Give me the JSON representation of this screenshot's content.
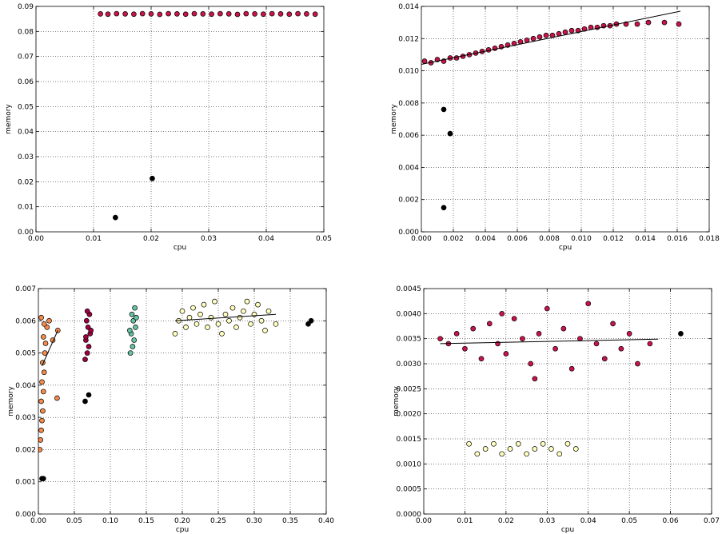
{
  "chart_data": [
    {
      "type": "scatter",
      "xlabel": "cpu",
      "ylabel": "memory",
      "xlim": [
        0,
        0.05
      ],
      "ylim": [
        0,
        0.09
      ],
      "xticks": [
        "0.00",
        "0.01",
        "0.02",
        "0.03",
        "0.04",
        "0.05"
      ],
      "yticks": [
        "0.00",
        "0.01",
        "0.02",
        "0.03",
        "0.04",
        "0.05",
        "0.06",
        "0.07",
        "0.08",
        "0.09"
      ],
      "grid": true,
      "series": [
        {
          "color": "#c8144a",
          "points": [
            [
              0.0112,
              0.087
            ],
            [
              0.0125,
              0.0869
            ],
            [
              0.014,
              0.0871
            ],
            [
              0.0155,
              0.087
            ],
            [
              0.017,
              0.0869
            ],
            [
              0.0185,
              0.0871
            ],
            [
              0.02,
              0.087
            ],
            [
              0.0215,
              0.0868
            ],
            [
              0.023,
              0.0871
            ],
            [
              0.0245,
              0.087
            ],
            [
              0.026,
              0.0869
            ],
            [
              0.0275,
              0.0871
            ],
            [
              0.029,
              0.087
            ],
            [
              0.0305,
              0.0869
            ],
            [
              0.032,
              0.0871
            ],
            [
              0.0335,
              0.087
            ],
            [
              0.035,
              0.0868
            ],
            [
              0.0365,
              0.0871
            ],
            [
              0.038,
              0.087
            ],
            [
              0.0395,
              0.0869
            ],
            [
              0.041,
              0.0871
            ],
            [
              0.0425,
              0.087
            ],
            [
              0.044,
              0.0869
            ],
            [
              0.0455,
              0.0871
            ],
            [
              0.047,
              0.087
            ],
            [
              0.0485,
              0.0869
            ]
          ]
        },
        {
          "color": "#000000",
          "points": [
            [
              0.0138,
              0.0057
            ],
            [
              0.0202,
              0.0213
            ]
          ]
        }
      ],
      "fit_lines": []
    },
    {
      "type": "scatter",
      "xlabel": "cpu",
      "ylabel": "memory",
      "xlim": [
        0,
        0.018
      ],
      "ylim": [
        0,
        0.014
      ],
      "xticks": [
        "0.000",
        "0.002",
        "0.004",
        "0.006",
        "0.008",
        "0.010",
        "0.012",
        "0.014",
        "0.016",
        "0.018"
      ],
      "yticks": [
        "0.000",
        "0.002",
        "0.004",
        "0.006",
        "0.008",
        "0.010",
        "0.012",
        "0.014"
      ],
      "grid": true,
      "series": [
        {
          "color": "#c8144a",
          "points": [
            [
              0.0002,
              0.0106
            ],
            [
              0.0006,
              0.0105
            ],
            [
              0.001,
              0.0107
            ],
            [
              0.0014,
              0.0106
            ],
            [
              0.0018,
              0.0108
            ],
            [
              0.0022,
              0.0108
            ],
            [
              0.0026,
              0.0109
            ],
            [
              0.003,
              0.011
            ],
            [
              0.0034,
              0.0111
            ],
            [
              0.0038,
              0.0112
            ],
            [
              0.0042,
              0.0113
            ],
            [
              0.0046,
              0.0114
            ],
            [
              0.005,
              0.0115
            ],
            [
              0.0054,
              0.0116
            ],
            [
              0.0058,
              0.0117
            ],
            [
              0.0062,
              0.0118
            ],
            [
              0.0066,
              0.0119
            ],
            [
              0.007,
              0.012
            ],
            [
              0.0074,
              0.0121
            ],
            [
              0.0078,
              0.0122
            ],
            [
              0.0082,
              0.0122
            ],
            [
              0.0086,
              0.0123
            ],
            [
              0.009,
              0.0124
            ],
            [
              0.0094,
              0.0125
            ],
            [
              0.0098,
              0.0125
            ],
            [
              0.0102,
              0.0126
            ],
            [
              0.0106,
              0.0127
            ],
            [
              0.011,
              0.0127
            ],
            [
              0.0114,
              0.0128
            ],
            [
              0.0118,
              0.0128
            ],
            [
              0.0122,
              0.0129
            ],
            [
              0.0128,
              0.0129
            ],
            [
              0.0135,
              0.0129
            ],
            [
              0.0142,
              0.013
            ],
            [
              0.0152,
              0.013
            ],
            [
              0.0161,
              0.0129
            ]
          ]
        },
        {
          "color": "#000000",
          "points": [
            [
              0.0014,
              0.0076
            ],
            [
              0.0018,
              0.0061
            ],
            [
              0.0014,
              0.0015
            ]
          ]
        }
      ],
      "fit_lines": [
        {
          "color": "#000000",
          "points": [
            [
              0.0,
              0.0104
            ],
            [
              0.0162,
              0.0137
            ]
          ]
        }
      ]
    },
    {
      "type": "scatter",
      "xlabel": "cpu",
      "ylabel": "memory",
      "xlim": [
        0,
        0.4
      ],
      "ylim": [
        0,
        0.007
      ],
      "xticks": [
        "0.00",
        "0.05",
        "0.10",
        "0.15",
        "0.20",
        "0.25",
        "0.30",
        "0.35",
        "0.40"
      ],
      "yticks": [
        "0.000",
        "0.001",
        "0.002",
        "0.003",
        "0.004",
        "0.005",
        "0.006",
        "0.007"
      ],
      "grid": true,
      "series": [
        {
          "color": "#f58b4c",
          "points": [
            [
              0.002,
              0.002
            ],
            [
              0.003,
              0.0023
            ],
            [
              0.004,
              0.0026
            ],
            [
              0.005,
              0.0029
            ],
            [
              0.006,
              0.0032
            ],
            [
              0.004,
              0.0035
            ],
            [
              0.007,
              0.0038
            ],
            [
              0.005,
              0.0041
            ],
            [
              0.008,
              0.0044
            ],
            [
              0.006,
              0.0047
            ],
            [
              0.009,
              0.005
            ],
            [
              0.01,
              0.0053
            ],
            [
              0.007,
              0.0055
            ],
            [
              0.012,
              0.0058
            ],
            [
              0.015,
              0.006
            ],
            [
              0.004,
              0.0061
            ],
            [
              0.008,
              0.0059
            ],
            [
              0.02,
              0.0054
            ],
            [
              0.026,
              0.0036
            ],
            [
              0.027,
              0.0057
            ]
          ]
        },
        {
          "color": "#9e0142",
          "points": [
            [
              0.065,
              0.0048
            ],
            [
              0.068,
              0.005
            ],
            [
              0.07,
              0.0052
            ],
            [
              0.066,
              0.0054
            ],
            [
              0.072,
              0.0056
            ],
            [
              0.069,
              0.0058
            ],
            [
              0.067,
              0.006
            ],
            [
              0.071,
              0.0062
            ],
            [
              0.068,
              0.0063
            ],
            [
              0.073,
              0.0057
            ],
            [
              0.066,
              0.0055
            ]
          ]
        },
        {
          "color": "#66c2a5",
          "points": [
            [
              0.128,
              0.005
            ],
            [
              0.131,
              0.0052
            ],
            [
              0.133,
              0.0054
            ],
            [
              0.129,
              0.0056
            ],
            [
              0.135,
              0.0058
            ],
            [
              0.132,
              0.006
            ],
            [
              0.13,
              0.0062
            ],
            [
              0.134,
              0.0064
            ],
            [
              0.136,
              0.0061
            ],
            [
              0.127,
              0.0057
            ]
          ]
        },
        {
          "color": "#ffffbf",
          "points": [
            [
              0.19,
              0.0056
            ],
            [
              0.195,
              0.006
            ],
            [
              0.2,
              0.0063
            ],
            [
              0.205,
              0.0058
            ],
            [
              0.21,
              0.0061
            ],
            [
              0.215,
              0.0064
            ],
            [
              0.22,
              0.0059
            ],
            [
              0.225,
              0.0062
            ],
            [
              0.23,
              0.0065
            ],
            [
              0.235,
              0.0058
            ],
            [
              0.24,
              0.0061
            ],
            [
              0.245,
              0.0066
            ],
            [
              0.25,
              0.0059
            ],
            [
              0.255,
              0.0056
            ],
            [
              0.26,
              0.0062
            ],
            [
              0.265,
              0.006
            ],
            [
              0.27,
              0.0064
            ],
            [
              0.275,
              0.0058
            ],
            [
              0.28,
              0.0061
            ],
            [
              0.285,
              0.0063
            ],
            [
              0.29,
              0.0066
            ],
            [
              0.295,
              0.0059
            ],
            [
              0.3,
              0.0062
            ],
            [
              0.305,
              0.0065
            ],
            [
              0.31,
              0.006
            ],
            [
              0.315,
              0.0057
            ],
            [
              0.32,
              0.0063
            ],
            [
              0.33,
              0.0059
            ]
          ]
        },
        {
          "color": "#000000",
          "points": [
            [
              0.005,
              0.0011
            ],
            [
              0.007,
              0.0011
            ],
            [
              0.065,
              0.0035
            ],
            [
              0.07,
              0.0037
            ],
            [
              0.375,
              0.0059
            ],
            [
              0.379,
              0.006
            ]
          ]
        }
      ],
      "fit_lines": [
        {
          "color": "#000000",
          "points": [
            [
              0.005,
              0.0046
            ],
            [
              0.027,
              0.0057
            ]
          ]
        },
        {
          "color": "#000000",
          "points": [
            [
              0.19,
              0.006
            ],
            [
              0.33,
              0.0062
            ]
          ]
        }
      ]
    },
    {
      "type": "scatter",
      "xlabel": "cpu",
      "ylabel": "memory",
      "xlim": [
        0,
        0.07
      ],
      "ylim": [
        0,
        0.0045
      ],
      "xticks": [
        "0.00",
        "0.01",
        "0.02",
        "0.03",
        "0.04",
        "0.05",
        "0.06",
        "0.07"
      ],
      "yticks": [
        "0.0000",
        "0.0005",
        "0.0010",
        "0.0015",
        "0.0020",
        "0.0025",
        "0.0030",
        "0.0035",
        "0.0040",
        "0.0045"
      ],
      "grid": true,
      "series": [
        {
          "color": "#c8144a",
          "points": [
            [
              0.004,
              0.0035
            ],
            [
              0.006,
              0.0034
            ],
            [
              0.008,
              0.0036
            ],
            [
              0.01,
              0.0033
            ],
            [
              0.012,
              0.0037
            ],
            [
              0.014,
              0.0031
            ],
            [
              0.016,
              0.0038
            ],
            [
              0.018,
              0.0034
            ],
            [
              0.02,
              0.0032
            ],
            [
              0.022,
              0.0039
            ],
            [
              0.024,
              0.0035
            ],
            [
              0.026,
              0.003
            ],
            [
              0.028,
              0.0036
            ],
            [
              0.03,
              0.0041
            ],
            [
              0.032,
              0.0033
            ],
            [
              0.034,
              0.0037
            ],
            [
              0.036,
              0.0029
            ],
            [
              0.038,
              0.0035
            ],
            [
              0.04,
              0.0042
            ],
            [
              0.042,
              0.0034
            ],
            [
              0.044,
              0.0031
            ],
            [
              0.046,
              0.0038
            ],
            [
              0.048,
              0.0033
            ],
            [
              0.05,
              0.0036
            ],
            [
              0.052,
              0.003
            ],
            [
              0.055,
              0.0034
            ],
            [
              0.027,
              0.0027
            ],
            [
              0.019,
              0.004
            ]
          ]
        },
        {
          "color": "#ffffbf",
          "points": [
            [
              0.011,
              0.0014
            ],
            [
              0.013,
              0.0012
            ],
            [
              0.015,
              0.0013
            ],
            [
              0.017,
              0.0014
            ],
            [
              0.019,
              0.0012
            ],
            [
              0.021,
              0.0013
            ],
            [
              0.023,
              0.0014
            ],
            [
              0.025,
              0.0012
            ],
            [
              0.027,
              0.0013
            ],
            [
              0.029,
              0.0014
            ],
            [
              0.031,
              0.0013
            ],
            [
              0.033,
              0.0012
            ],
            [
              0.035,
              0.0014
            ],
            [
              0.037,
              0.0013
            ]
          ]
        },
        {
          "color": "#000000",
          "points": [
            [
              0.0625,
              0.0036
            ]
          ]
        }
      ],
      "fit_lines": [
        {
          "color": "#000000",
          "points": [
            [
              0.004,
              0.0034
            ],
            [
              0.057,
              0.00349
            ]
          ]
        }
      ]
    }
  ]
}
